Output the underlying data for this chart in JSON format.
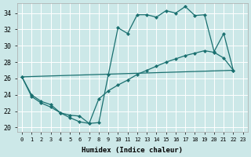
{
  "xlabel": "Humidex (Indice chaleur)",
  "xlim": [
    -0.5,
    23.5
  ],
  "ylim": [
    19.5,
    35.2
  ],
  "ytick_values": [
    20,
    22,
    24,
    26,
    28,
    30,
    32,
    34
  ],
  "bg_color": "#cce8e8",
  "grid_color": "#b8d8d8",
  "line_color": "#1a7070",
  "line1_x": [
    0,
    1,
    2,
    3,
    4,
    5,
    6,
    7,
    8,
    9,
    10,
    11,
    12,
    13,
    14,
    15,
    16,
    17,
    18,
    19,
    20,
    21,
    22
  ],
  "line1_y": [
    26.2,
    24.0,
    23.2,
    22.8,
    21.8,
    21.5,
    21.4,
    20.5,
    20.6,
    26.5,
    32.2,
    31.5,
    33.8,
    33.8,
    33.5,
    34.3,
    34.0,
    34.8,
    33.7,
    33.8,
    29.3,
    31.5,
    27.0
  ],
  "line2_x": [
    0,
    1,
    2,
    3,
    4,
    5,
    6,
    7,
    8,
    9,
    10,
    11,
    12,
    13,
    14,
    15,
    16,
    17,
    18,
    19,
    20,
    21,
    22
  ],
  "line2_y": [
    26.2,
    23.8,
    23.0,
    22.5,
    21.8,
    21.2,
    20.7,
    20.5,
    23.5,
    24.5,
    25.2,
    25.8,
    26.5,
    27.0,
    27.5,
    28.0,
    28.4,
    28.8,
    29.1,
    29.4,
    29.2,
    28.5,
    27.0
  ],
  "line3_x": [
    0,
    22
  ],
  "line3_y": [
    26.2,
    27.0
  ],
  "marker_size": 2.5,
  "line_width": 0.9
}
